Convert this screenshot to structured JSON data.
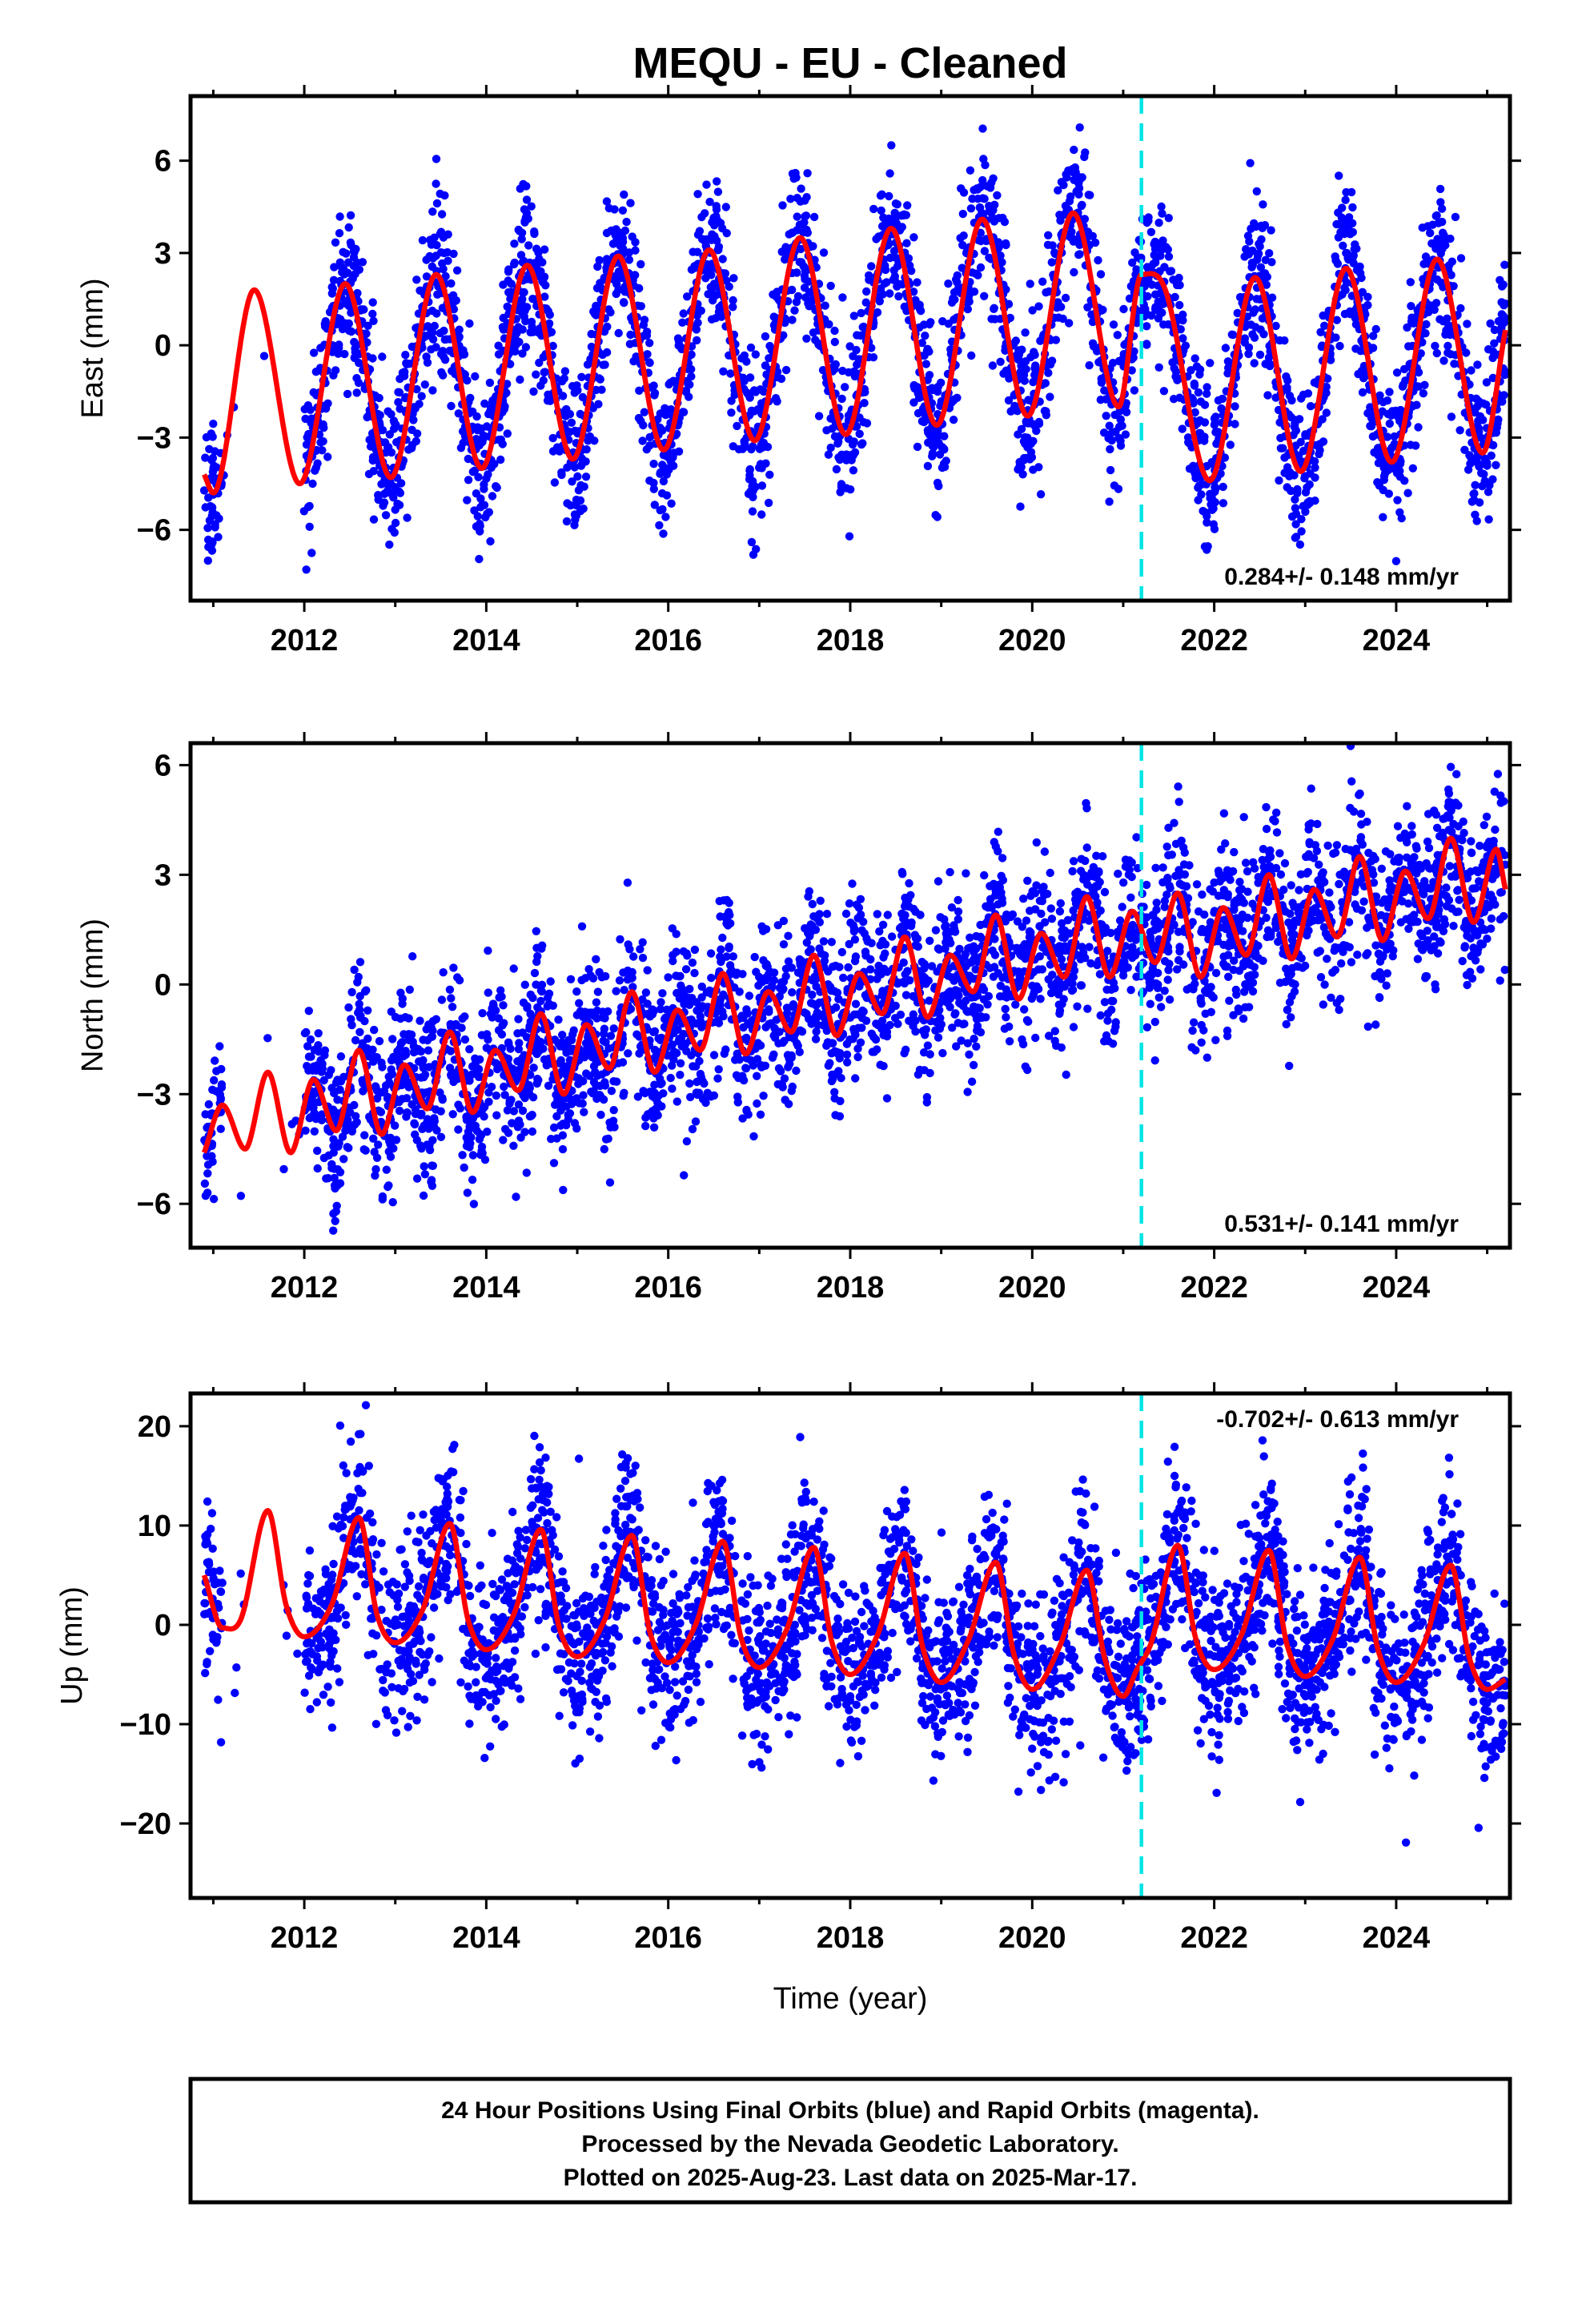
{
  "title": "MEQU  - EU - Cleaned",
  "xlabel": "Time (year)",
  "footer": {
    "line1": "24 Hour Positions Using Final Orbits (blue) and Rapid Orbits (magenta).",
    "line2": "Processed by the Nevada Geodetic Laboratory.",
    "line3": "Plotted on 2025-Aug-23. Last data on 2025-Mar-17."
  },
  "colors": {
    "data": "#0000ff",
    "model": "#ff0000",
    "break": "#00e5e5",
    "frame": "#000000"
  },
  "chart_data": [
    {
      "type": "scatter",
      "component": "east",
      "ylabel": "East (mm)",
      "xlim": [
        2010.75,
        2025.25
      ],
      "ylim": [
        -8.3,
        8.1
      ],
      "x_ticks": [
        2012,
        2014,
        2016,
        2018,
        2020,
        2022,
        2024
      ],
      "y_ticks": [
        -6,
        -3,
        0,
        3,
        6
      ],
      "rate_label": "0.284+/- 0.148 mm/yr",
      "rate_position": "bottom-right",
      "break_year": 2021.2,
      "data_start": 2010.9,
      "data_end": 2025.2,
      "gap": [
        2011.1,
        2012.0
      ],
      "series": [
        {
          "name": "Final Orbits",
          "kind": "points",
          "color": "#0000ff",
          "scatter_sd": 1.3,
          "n_points": 3600
        },
        {
          "name": "Model",
          "kind": "line",
          "color": "#ff0000",
          "model_points": [
            [
              2010.9,
              -4.2
            ],
            [
              2011.0,
              -4.8
            ],
            [
              2011.45,
              1.8
            ],
            [
              2011.95,
              -4.5
            ],
            [
              2012.45,
              2.0
            ],
            [
              2012.95,
              -4.3
            ],
            [
              2013.45,
              2.3
            ],
            [
              2013.95,
              -4.0
            ],
            [
              2014.45,
              2.6
            ],
            [
              2014.95,
              -3.7
            ],
            [
              2015.45,
              2.9
            ],
            [
              2015.95,
              -3.4
            ],
            [
              2016.45,
              3.1
            ],
            [
              2016.95,
              -3.1
            ],
            [
              2017.45,
              3.5
            ],
            [
              2017.95,
              -2.9
            ],
            [
              2018.45,
              3.8
            ],
            [
              2018.95,
              -2.6
            ],
            [
              2019.45,
              4.1
            ],
            [
              2019.95,
              -2.3
            ],
            [
              2020.45,
              4.3
            ],
            [
              2020.95,
              -2.0
            ],
            [
              2021.2,
              2.3
            ],
            [
              2021.45,
              1.9
            ],
            [
              2021.95,
              -4.4
            ],
            [
              2022.45,
              2.2
            ],
            [
              2022.95,
              -4.1
            ],
            [
              2023.45,
              2.5
            ],
            [
              2023.95,
              -3.8
            ],
            [
              2024.45,
              2.8
            ],
            [
              2024.95,
              -3.5
            ],
            [
              2025.2,
              0.5
            ]
          ]
        }
      ]
    },
    {
      "type": "scatter",
      "component": "north",
      "ylabel": "North (mm)",
      "xlim": [
        2010.75,
        2025.25
      ],
      "ylim": [
        -7.2,
        6.6
      ],
      "x_ticks": [
        2012,
        2014,
        2016,
        2018,
        2020,
        2022,
        2024
      ],
      "y_ticks": [
        -6,
        -3,
        0,
        3,
        6
      ],
      "rate_label": "0.531+/- 0.141 mm/yr",
      "rate_position": "bottom-right",
      "break_year": 2021.2,
      "data_start": 2010.9,
      "data_end": 2025.2,
      "gap": [
        2011.1,
        2012.0
      ],
      "series": [
        {
          "name": "Final Orbits",
          "kind": "points",
          "color": "#0000ff",
          "scatter_sd": 1.1,
          "n_points": 3600
        },
        {
          "name": "Model",
          "kind": "line",
          "color": "#ff0000",
          "model_points": [
            [
              2010.9,
              -4.6
            ],
            [
              2011.1,
              -3.3
            ],
            [
              2011.35,
              -4.5
            ],
            [
              2011.6,
              -2.4
            ],
            [
              2011.85,
              -4.6
            ],
            [
              2012.1,
              -2.6
            ],
            [
              2012.35,
              -4.0
            ],
            [
              2012.6,
              -1.8
            ],
            [
              2012.85,
              -4.1
            ],
            [
              2013.1,
              -2.2
            ],
            [
              2013.35,
              -3.4
            ],
            [
              2013.6,
              -1.3
            ],
            [
              2013.85,
              -3.5
            ],
            [
              2014.1,
              -1.8
            ],
            [
              2014.35,
              -2.9
            ],
            [
              2014.6,
              -0.8
            ],
            [
              2014.85,
              -3.0
            ],
            [
              2015.1,
              -1.1
            ],
            [
              2015.35,
              -2.3
            ],
            [
              2015.6,
              -0.2
            ],
            [
              2015.85,
              -2.4
            ],
            [
              2016.1,
              -0.7
            ],
            [
              2016.35,
              -1.8
            ],
            [
              2016.6,
              0.3
            ],
            [
              2016.85,
              -1.9
            ],
            [
              2017.1,
              -0.2
            ],
            [
              2017.35,
              -1.3
            ],
            [
              2017.6,
              0.8
            ],
            [
              2017.85,
              -1.4
            ],
            [
              2018.1,
              0.3
            ],
            [
              2018.35,
              -0.8
            ],
            [
              2018.6,
              1.3
            ],
            [
              2018.85,
              -0.9
            ],
            [
              2019.1,
              0.8
            ],
            [
              2019.35,
              -0.2
            ],
            [
              2019.6,
              1.9
            ],
            [
              2019.85,
              -0.4
            ],
            [
              2020.1,
              1.4
            ],
            [
              2020.35,
              0.2
            ],
            [
              2020.6,
              2.4
            ],
            [
              2020.85,
              0.2
            ],
            [
              2021.1,
              2.0
            ],
            [
              2021.35,
              0.6
            ],
            [
              2021.6,
              2.5
            ],
            [
              2021.85,
              0.2
            ],
            [
              2022.1,
              2.1
            ],
            [
              2022.35,
              0.8
            ],
            [
              2022.6,
              3.0
            ],
            [
              2022.85,
              0.7
            ],
            [
              2023.1,
              2.6
            ],
            [
              2023.35,
              1.3
            ],
            [
              2023.6,
              3.5
            ],
            [
              2023.85,
              1.2
            ],
            [
              2024.1,
              3.1
            ],
            [
              2024.35,
              1.8
            ],
            [
              2024.6,
              4.0
            ],
            [
              2024.85,
              1.7
            ],
            [
              2025.1,
              3.7
            ],
            [
              2025.2,
              2.6
            ]
          ]
        }
      ]
    },
    {
      "type": "scatter",
      "component": "up",
      "ylabel": "Up (mm)",
      "xlabel": "Time (year)",
      "xlim": [
        2010.75,
        2025.25
      ],
      "ylim": [
        -27.5,
        23.3
      ],
      "x_ticks": [
        2012,
        2014,
        2016,
        2018,
        2020,
        2022,
        2024
      ],
      "y_ticks": [
        -20,
        -10,
        0,
        10,
        20
      ],
      "rate_label": "-0.702+/- 0.613 mm/yr",
      "rate_position": "top-right",
      "break_year": 2021.2,
      "data_start": 2010.9,
      "data_end": 2025.2,
      "gap": [
        2011.1,
        2012.0
      ],
      "series": [
        {
          "name": "Final Orbits",
          "kind": "points",
          "color": "#0000ff",
          "scatter_sd": 4.5,
          "n_points": 3600
        },
        {
          "name": "Model",
          "kind": "line",
          "color": "#ff0000",
          "model_points": [
            [
              2010.9,
              5.0
            ],
            [
              2011.1,
              -0.3
            ],
            [
              2011.3,
              0.5
            ],
            [
              2011.6,
              11.5
            ],
            [
              2011.8,
              2.0
            ],
            [
              2012.0,
              -1.2
            ],
            [
              2012.3,
              2.0
            ],
            [
              2012.6,
              10.8
            ],
            [
              2012.8,
              1.0
            ],
            [
              2013.0,
              -1.8
            ],
            [
              2013.3,
              1.5
            ],
            [
              2013.6,
              10.2
            ],
            [
              2013.8,
              0.5
            ],
            [
              2014.0,
              -2.5
            ],
            [
              2014.3,
              1.0
            ],
            [
              2014.6,
              9.6
            ],
            [
              2014.8,
              -0.2
            ],
            [
              2015.0,
              -3.2
            ],
            [
              2015.3,
              0.5
            ],
            [
              2015.6,
              9.0
            ],
            [
              2015.8,
              -0.8
            ],
            [
              2016.0,
              -3.8
            ],
            [
              2016.3,
              0.0
            ],
            [
              2016.6,
              8.4
            ],
            [
              2016.8,
              -1.3
            ],
            [
              2017.0,
              -4.3
            ],
            [
              2017.3,
              -0.5
            ],
            [
              2017.6,
              7.8
            ],
            [
              2017.8,
              -1.8
            ],
            [
              2018.0,
              -5.0
            ],
            [
              2018.3,
              -1.0
            ],
            [
              2018.6,
              7.2
            ],
            [
              2018.8,
              -2.4
            ],
            [
              2019.0,
              -5.8
            ],
            [
              2019.3,
              -1.5
            ],
            [
              2019.6,
              6.3
            ],
            [
              2019.8,
              -3.0
            ],
            [
              2020.0,
              -6.5
            ],
            [
              2020.3,
              -2.2
            ],
            [
              2020.6,
              5.5
            ],
            [
              2020.8,
              -3.5
            ],
            [
              2021.0,
              -7.2
            ],
            [
              2021.15,
              -4.5
            ],
            [
              2021.3,
              -2.0
            ],
            [
              2021.6,
              8.0
            ],
            [
              2021.8,
              -1.5
            ],
            [
              2022.0,
              -4.5
            ],
            [
              2022.3,
              -1.0
            ],
            [
              2022.6,
              7.5
            ],
            [
              2022.8,
              -2.0
            ],
            [
              2023.0,
              -5.2
            ],
            [
              2023.3,
              -1.5
            ],
            [
              2023.6,
              6.8
            ],
            [
              2023.8,
              -2.5
            ],
            [
              2024.0,
              -5.8
            ],
            [
              2024.3,
              -2.0
            ],
            [
              2024.6,
              6.0
            ],
            [
              2024.8,
              -3.2
            ],
            [
              2025.0,
              -6.5
            ],
            [
              2025.2,
              -5.5
            ]
          ]
        }
      ]
    }
  ]
}
